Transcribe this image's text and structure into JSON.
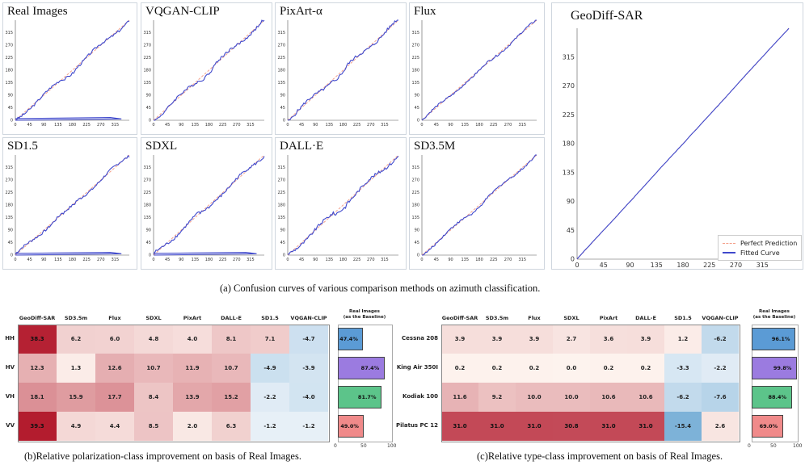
{
  "figure": {
    "caption_a": "(a) Confusion curves of various comparison methods on azimuth classification.",
    "caption_b": "(b)Relative polarization-class improvement on basis of Real Images.",
    "caption_c": "(c)Relative type-class improvement on basis of Real Images."
  },
  "legend": {
    "perfect": "Perfect Prediction",
    "fitted": "Fitted Curve"
  },
  "bar_header": "Real Images\n(as the Baseline)",
  "colors": {
    "curve": "#3f48cc",
    "diag": "#f4a08a",
    "heat_pos": "#b2182b",
    "heat_neg": "#4393c3"
  },
  "chart_data": [
    {
      "type": "line",
      "title": "Real Images",
      "xlim": [
        0,
        360
      ],
      "ylim": [
        0,
        360
      ],
      "xticks": [
        0,
        45,
        90,
        135,
        180,
        225,
        270,
        315
      ],
      "yticks": [
        0,
        45,
        90,
        135,
        180,
        225,
        270,
        315
      ]
    },
    {
      "type": "line",
      "title": "VQGAN-CLIP",
      "xlim": [
        0,
        360
      ],
      "ylim": [
        0,
        360
      ],
      "xticks": [
        0,
        45,
        90,
        135,
        180,
        225,
        270,
        315
      ],
      "yticks": [
        0,
        45,
        90,
        135,
        180,
        225,
        270,
        315
      ]
    },
    {
      "type": "line",
      "title": "PixArt-α",
      "xlim": [
        0,
        360
      ],
      "ylim": [
        0,
        360
      ],
      "xticks": [
        0,
        45,
        90,
        135,
        180,
        225,
        270,
        315
      ],
      "yticks": [
        0,
        45,
        90,
        135,
        180,
        225,
        270,
        315
      ]
    },
    {
      "type": "line",
      "title": "Flux",
      "xlim": [
        0,
        360
      ],
      "ylim": [
        0,
        360
      ],
      "xticks": [
        0,
        45,
        90,
        135,
        180,
        225,
        270,
        315
      ],
      "yticks": [
        0,
        45,
        90,
        135,
        180,
        225,
        270,
        315
      ]
    },
    {
      "type": "line",
      "title": "SD1.5",
      "xlim": [
        0,
        360
      ],
      "ylim": [
        0,
        360
      ],
      "xticks": [
        0,
        45,
        90,
        135,
        180,
        225,
        270,
        315
      ],
      "yticks": [
        0,
        45,
        90,
        135,
        180,
        225,
        270,
        315
      ]
    },
    {
      "type": "line",
      "title": "SDXL",
      "xlim": [
        0,
        360
      ],
      "ylim": [
        0,
        360
      ],
      "xticks": [
        0,
        45,
        90,
        135,
        180,
        225,
        270,
        315
      ],
      "yticks": [
        0,
        45,
        90,
        135,
        180,
        225,
        270,
        315
      ]
    },
    {
      "type": "line",
      "title": "DALL·E",
      "xlim": [
        0,
        360
      ],
      "ylim": [
        0,
        360
      ],
      "xticks": [
        0,
        45,
        90,
        135,
        180,
        225,
        270,
        315
      ],
      "yticks": [
        0,
        45,
        90,
        135,
        180,
        225,
        270,
        315
      ]
    },
    {
      "type": "line",
      "title": "SD3.5M",
      "xlim": [
        0,
        360
      ],
      "ylim": [
        0,
        360
      ],
      "xticks": [
        0,
        45,
        90,
        135,
        180,
        225,
        270,
        315
      ],
      "yticks": [
        0,
        45,
        90,
        135,
        180,
        225,
        270,
        315
      ]
    },
    {
      "type": "line",
      "title": "GeoDiff-SAR",
      "xlim": [
        0,
        360
      ],
      "ylim": [
        0,
        360
      ],
      "xticks": [
        0,
        45,
        90,
        135,
        180,
        225,
        270,
        315
      ],
      "yticks": [
        0,
        45,
        90,
        135,
        180,
        225,
        270,
        315
      ]
    },
    {
      "type": "heatmap",
      "title": "(b)Relative polarization-class improvement on basis of Real Images.",
      "columns": [
        "GeoDiff-SAR",
        "SD3.5m",
        "Flux",
        "SDXL",
        "PixArt",
        "DALL-E",
        "SD1.5",
        "VQGAN-CLIP"
      ],
      "rows": [
        "HH",
        "HV",
        "VH",
        "VV"
      ],
      "values": [
        [
          38.3,
          6.2,
          6.0,
          4.8,
          4.0,
          8.1,
          7.1,
          -4.7
        ],
        [
          12.3,
          1.3,
          12.6,
          10.7,
          11.9,
          10.7,
          -4.9,
          -3.9
        ],
        [
          18.1,
          15.9,
          17.7,
          8.4,
          13.9,
          15.2,
          -2.2,
          -4.0
        ],
        [
          39.3,
          4.9,
          4.4,
          8.5,
          2.0,
          6.3,
          -1.2,
          -1.2
        ]
      ],
      "baseline": {
        "labels": [
          "47.4%",
          "87.4%",
          "81.7%",
          "49.0%"
        ],
        "values": [
          47.4,
          87.4,
          81.7,
          49.0
        ],
        "colors": [
          "#5b9bd5",
          "#9b7be0",
          "#5cc48a",
          "#f08a8a"
        ],
        "xticks": [
          0,
          50,
          100
        ]
      }
    },
    {
      "type": "heatmap",
      "title": "(c)Relative type-class improvement on basis of Real Images.",
      "columns": [
        "GeoDiff-SAR",
        "SD3.5m",
        "Flux",
        "SDXL",
        "PixArt",
        "DALL-E",
        "SD1.5",
        "VQGAN-CLIP"
      ],
      "rows": [
        "Cessna 208",
        "King Air 350I",
        "Kodiak 100",
        "Pilatus PC 12"
      ],
      "values": [
        [
          3.9,
          3.9,
          3.9,
          2.7,
          3.6,
          3.9,
          1.2,
          -6.2
        ],
        [
          0.2,
          0.2,
          0.2,
          0.0,
          0.2,
          0.2,
          -3.3,
          -2.2
        ],
        [
          11.6,
          9.2,
          10.0,
          10.0,
          10.6,
          10.6,
          -6.2,
          -7.6
        ],
        [
          31.0,
          31.0,
          31.0,
          30.8,
          31.0,
          31.0,
          -15.4,
          2.6
        ]
      ],
      "baseline": {
        "labels": [
          "96.1%",
          "99.8%",
          "88.4%",
          "69.0%"
        ],
        "values": [
          96.1,
          99.8,
          88.4,
          69.0
        ],
        "colors": [
          "#5b9bd5",
          "#9b7be0",
          "#5cc48a",
          "#f08a8a"
        ],
        "xticks": [
          0,
          50,
          100
        ]
      }
    }
  ]
}
